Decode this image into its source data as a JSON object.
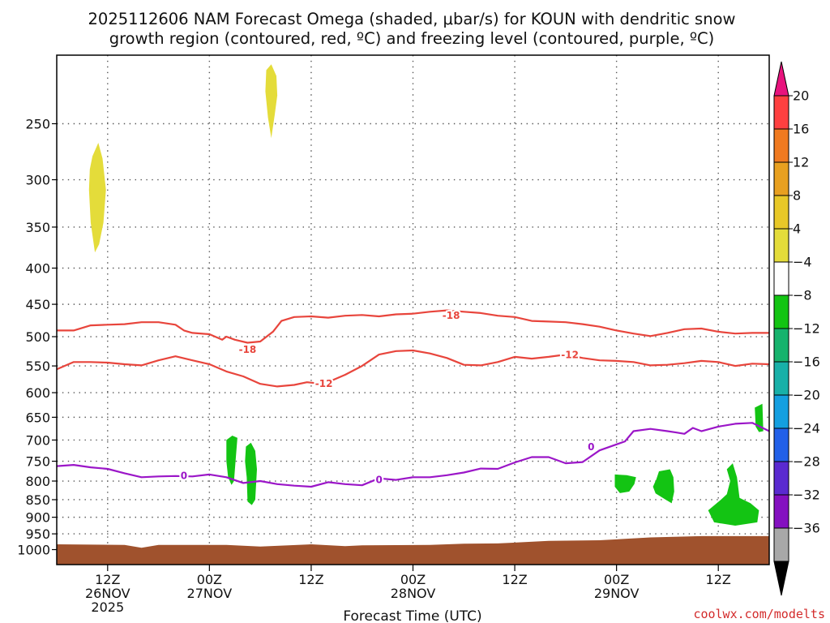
{
  "title": {
    "line1": "2025112606 NAM Forecast Omega (shaded, μbar/s) for KOUN with dendritic snow",
    "line2": "growth region (contoured, red, ºC) and freezing level (contoured, purple, ºC)"
  },
  "credit": "coolwx.com/modelts",
  "colors": {
    "dgz_contour": "#e8453c",
    "freezing_contour": "#9b16c8",
    "terrain": "#a0522d",
    "grid": "#555555"
  },
  "chart_data": {
    "type": "heatmap",
    "xlabel": "Forecast Time (UTC)",
    "x_unit": "forecast hour",
    "x_range": [
      0,
      84
    ],
    "y_unit": "hPa",
    "y_range": [
      1050,
      200
    ],
    "y_scale": "log",
    "grid": true,
    "y_ticks": [
      250,
      300,
      350,
      400,
      450,
      500,
      550,
      600,
      650,
      700,
      750,
      800,
      850,
      900,
      950,
      1000
    ],
    "x_ticks": [
      {
        "hour": 6,
        "lines": [
          "12Z",
          "26NOV",
          "2025"
        ]
      },
      {
        "hour": 18,
        "lines": [
          "00Z",
          "27NOV"
        ]
      },
      {
        "hour": 30,
        "lines": [
          "12Z"
        ]
      },
      {
        "hour": 42,
        "lines": [
          "00Z",
          "28NOV"
        ]
      },
      {
        "hour": 54,
        "lines": [
          "12Z"
        ]
      },
      {
        "hour": 66,
        "lines": [
          "00Z",
          "29NOV"
        ]
      },
      {
        "hour": 78,
        "lines": [
          "12Z"
        ]
      }
    ],
    "colorbar": {
      "ticks": [
        "20",
        "16",
        "12",
        "8",
        "4",
        "−4",
        "−8",
        "−12",
        "−16",
        "−20",
        "−24",
        "−28",
        "−32",
        "−36"
      ],
      "top_color": "#e8137d",
      "bottom_color": "#000000",
      "bands": [
        "#ff4040",
        "#f07a20",
        "#e8a020",
        "#e8c828",
        "#e4dc3a",
        "#ffffff",
        "#13c413",
        "#16b36d",
        "#18b0a8",
        "#149fe0",
        "#2260e8",
        "#5a2ad0",
        "#8410c0",
        "#a8a8a8"
      ]
    },
    "contours": [
      {
        "label": "-18",
        "color": "#e8453c",
        "label_positions": [
          [
            22.5,
            521
          ],
          [
            46.5,
            466
          ]
        ],
        "points": [
          [
            0,
            490
          ],
          [
            2,
            490
          ],
          [
            4,
            482
          ],
          [
            6,
            481
          ],
          [
            8,
            480
          ],
          [
            10,
            477
          ],
          [
            12,
            477
          ],
          [
            14,
            481
          ],
          [
            15,
            490
          ],
          [
            16,
            494
          ],
          [
            18,
            496
          ],
          [
            19.5,
            505
          ],
          [
            20,
            500
          ],
          [
            21,
            505
          ],
          [
            22.5,
            510
          ],
          [
            24,
            508
          ],
          [
            25.5,
            492
          ],
          [
            26.5,
            475
          ],
          [
            28,
            469
          ],
          [
            30,
            468
          ],
          [
            32,
            470
          ],
          [
            34,
            467
          ],
          [
            36,
            466
          ],
          [
            38,
            468
          ],
          [
            40,
            465
          ],
          [
            42,
            464
          ],
          [
            44,
            461
          ],
          [
            46,
            459
          ],
          [
            48,
            461
          ],
          [
            50,
            463
          ],
          [
            52,
            467
          ],
          [
            54,
            469
          ],
          [
            56,
            475
          ],
          [
            58,
            476
          ],
          [
            60,
            477
          ],
          [
            62,
            480
          ],
          [
            64,
            484
          ],
          [
            66,
            490
          ],
          [
            68,
            495
          ],
          [
            70,
            499
          ],
          [
            72,
            494
          ],
          [
            74,
            488
          ],
          [
            76,
            487
          ],
          [
            78,
            492
          ],
          [
            80,
            495
          ],
          [
            82,
            494
          ],
          [
            84,
            494
          ]
        ]
      },
      {
        "label": "-12",
        "color": "#e8453c",
        "label_positions": [
          [
            31.5,
            582
          ],
          [
            60.5,
            530
          ]
        ],
        "points": [
          [
            0,
            556
          ],
          [
            2,
            543
          ],
          [
            4,
            543
          ],
          [
            6,
            544
          ],
          [
            8,
            547
          ],
          [
            10,
            549
          ],
          [
            12,
            540
          ],
          [
            14,
            533
          ],
          [
            16,
            540
          ],
          [
            18,
            547
          ],
          [
            20,
            560
          ],
          [
            22,
            569
          ],
          [
            24,
            583
          ],
          [
            26,
            588
          ],
          [
            28,
            585
          ],
          [
            29.5,
            580
          ],
          [
            31.5,
            583
          ],
          [
            34,
            566
          ],
          [
            36,
            550
          ],
          [
            38,
            530
          ],
          [
            40,
            524
          ],
          [
            42,
            523
          ],
          [
            44,
            528
          ],
          [
            46,
            536
          ],
          [
            48,
            548
          ],
          [
            50,
            549
          ],
          [
            52,
            543
          ],
          [
            54,
            534
          ],
          [
            56,
            537
          ],
          [
            58,
            534
          ],
          [
            60,
            530
          ],
          [
            62,
            536
          ],
          [
            64,
            540
          ],
          [
            66,
            541
          ],
          [
            68,
            543
          ],
          [
            70,
            549
          ],
          [
            72,
            548
          ],
          [
            74,
            545
          ],
          [
            76,
            541
          ],
          [
            78,
            543
          ],
          [
            80,
            550
          ],
          [
            82,
            546
          ],
          [
            84,
            547
          ]
        ]
      },
      {
        "label": "0",
        "color": "#9b16c8",
        "label_positions": [
          [
            15,
            785
          ],
          [
            38,
            796
          ],
          [
            63,
            715
          ]
        ],
        "points": [
          [
            0,
            762
          ],
          [
            2,
            759
          ],
          [
            4,
            765
          ],
          [
            6,
            769
          ],
          [
            8,
            780
          ],
          [
            10,
            790
          ],
          [
            12,
            788
          ],
          [
            14,
            787
          ],
          [
            16,
            788
          ],
          [
            18,
            783
          ],
          [
            20,
            790
          ],
          [
            22,
            805
          ],
          [
            24,
            800
          ],
          [
            26,
            808
          ],
          [
            28,
            812
          ],
          [
            30,
            815
          ],
          [
            32,
            803
          ],
          [
            34,
            808
          ],
          [
            36,
            811
          ],
          [
            38,
            793
          ],
          [
            40,
            797
          ],
          [
            42,
            790
          ],
          [
            44,
            790
          ],
          [
            46,
            785
          ],
          [
            48,
            778
          ],
          [
            50,
            768
          ],
          [
            52,
            769
          ],
          [
            54,
            753
          ],
          [
            56,
            740
          ],
          [
            58,
            740
          ],
          [
            60,
            755
          ],
          [
            62,
            752
          ],
          [
            64,
            724
          ],
          [
            66,
            710
          ],
          [
            67,
            703
          ],
          [
            68,
            680
          ],
          [
            70,
            675
          ],
          [
            72,
            680
          ],
          [
            73,
            683
          ],
          [
            74,
            686
          ],
          [
            75,
            673
          ],
          [
            76,
            680
          ],
          [
            78,
            670
          ],
          [
            80,
            664
          ],
          [
            82,
            662
          ],
          [
            84,
            680
          ]
        ]
      }
    ],
    "omega_regions": [
      {
        "value_band": "4 to 8",
        "color": "#e4dc3a",
        "points": [
          [
            4.2,
            278
          ],
          [
            4.9,
            266
          ],
          [
            5.4,
            280
          ],
          [
            5.8,
            310
          ],
          [
            5.5,
            345
          ],
          [
            5.0,
            370
          ],
          [
            4.5,
            380
          ],
          [
            4.0,
            345
          ],
          [
            3.8,
            310
          ],
          [
            3.9,
            290
          ]
        ]
      },
      {
        "value_band": "4 to 8",
        "color": "#e4dc3a",
        "points": [
          [
            24.7,
            210
          ],
          [
            25.3,
            206
          ],
          [
            25.9,
            214
          ],
          [
            26.0,
            228
          ],
          [
            25.7,
            243
          ],
          [
            25.3,
            262
          ],
          [
            24.9,
            245
          ],
          [
            24.6,
            225
          ]
        ]
      },
      {
        "value_band": "-8 to -4",
        "color": "#13c413",
        "points": [
          [
            20.0,
            700
          ],
          [
            20.7,
            690
          ],
          [
            21.3,
            695
          ],
          [
            21.1,
            745
          ],
          [
            20.9,
            800
          ],
          [
            20.6,
            810
          ],
          [
            20.2,
            790
          ],
          [
            20.0,
            750
          ]
        ]
      },
      {
        "value_band": "-8 to -4",
        "color": "#13c413",
        "points": [
          [
            22.3,
            715
          ],
          [
            22.9,
            706
          ],
          [
            23.4,
            725
          ],
          [
            23.6,
            770
          ],
          [
            23.4,
            850
          ],
          [
            23.0,
            865
          ],
          [
            22.5,
            855
          ],
          [
            22.4,
            790
          ],
          [
            22.2,
            750
          ]
        ]
      },
      {
        "value_band": "-8 to -4",
        "color": "#13c413",
        "points": [
          [
            65.8,
            783
          ],
          [
            67.2,
            785
          ],
          [
            68.3,
            790
          ],
          [
            68.1,
            808
          ],
          [
            67.5,
            828
          ],
          [
            66.4,
            832
          ],
          [
            65.8,
            815
          ]
        ]
      },
      {
        "value_band": "-8 to -4",
        "color": "#13c413",
        "points": [
          [
            71.0,
            775
          ],
          [
            72.3,
            770
          ],
          [
            72.7,
            790
          ],
          [
            72.8,
            828
          ],
          [
            72.5,
            860
          ],
          [
            71.8,
            850
          ],
          [
            70.6,
            833
          ],
          [
            70.3,
            815
          ],
          [
            70.7,
            795
          ]
        ]
      },
      {
        "value_band": "-8 to -4",
        "color": "#13c413",
        "points": [
          [
            79.0,
            770
          ],
          [
            79.7,
            755
          ],
          [
            80.2,
            790
          ],
          [
            80.5,
            845
          ],
          [
            81.8,
            860
          ],
          [
            82.8,
            880
          ],
          [
            82.6,
            915
          ],
          [
            80.0,
            925
          ],
          [
            77.5,
            915
          ],
          [
            76.8,
            880
          ],
          [
            78.3,
            850
          ],
          [
            79.0,
            835
          ],
          [
            79.4,
            800
          ]
        ]
      },
      {
        "value_band": "-8 to -4",
        "color": "#13c413",
        "points": [
          [
            82.3,
            630
          ],
          [
            83.2,
            622
          ],
          [
            83.3,
            680
          ],
          [
            82.8,
            682
          ],
          [
            82.4,
            670
          ]
        ]
      }
    ],
    "terrain_top": [
      [
        0,
        983
      ],
      [
        8,
        985
      ],
      [
        10,
        994
      ],
      [
        12,
        985
      ],
      [
        20,
        985
      ],
      [
        24,
        990
      ],
      [
        30,
        983
      ],
      [
        34,
        989
      ],
      [
        36,
        986
      ],
      [
        44,
        985
      ],
      [
        48,
        981
      ],
      [
        52,
        980
      ],
      [
        58,
        972
      ],
      [
        64,
        970
      ],
      [
        70,
        961
      ],
      [
        76,
        957
      ],
      [
        84,
        957
      ]
    ]
  }
}
